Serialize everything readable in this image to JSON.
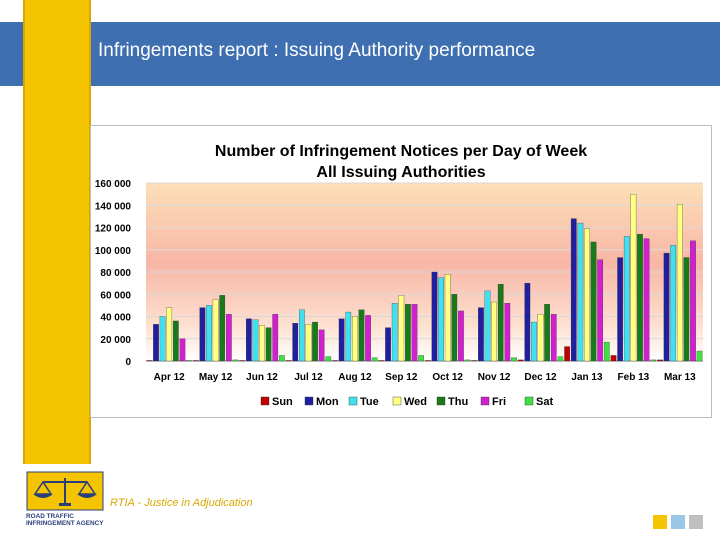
{
  "slide": {
    "title": "Infringements report :  Issuing Authority performance",
    "footer": "RTIA - Justice in Adjudication",
    "logo_text": [
      "ROAD TRAFFIC",
      "INFRINGEMENT AGENCY"
    ]
  },
  "colors": {
    "header": "#3e6fb0",
    "strip": "#f5c400",
    "footer_squares": [
      "#f5c400",
      "#9cc8e8",
      "#bfbfbf"
    ]
  },
  "chart_data": {
    "type": "bar",
    "title": [
      "Number of Infringement Notices per Day of  Week",
      "All Issuing Authorities"
    ],
    "categories": [
      "Apr 12",
      "May 12",
      "Jun 12",
      "Jul 12",
      "Aug 12",
      "Sep 12",
      "Oct 12",
      "Nov 12",
      "Dec 12",
      "Jan 13",
      "Feb 13",
      "Mar 13"
    ],
    "yticks": [
      "0",
      "20 000",
      "40 000",
      "60 000",
      "80 000",
      "100 000",
      "120 000",
      "140 000",
      "160 000"
    ],
    "ylim": [
      0,
      160000
    ],
    "grid": true,
    "legend_position": "bottom",
    "series": [
      {
        "name": "Sun",
        "color": "#c00000",
        "values": [
          500,
          500,
          500,
          500,
          500,
          500,
          500,
          500,
          1000,
          13000,
          5000,
          1000
        ]
      },
      {
        "name": "Mon",
        "color": "#1f1fa0",
        "values": [
          33000,
          48000,
          38000,
          34000,
          38000,
          30000,
          80000,
          48000,
          70000,
          128000,
          93000,
          97000
        ]
      },
      {
        "name": "Tue",
        "color": "#40e0f0",
        "values": [
          40000,
          50000,
          37000,
          46000,
          44000,
          52000,
          75000,
          63000,
          35000,
          124000,
          112000,
          104000
        ]
      },
      {
        "name": "Wed",
        "color": "#ffff80",
        "values": [
          48000,
          55000,
          32000,
          33000,
          40000,
          59000,
          78000,
          53000,
          42000,
          119000,
          150000,
          141000
        ]
      },
      {
        "name": "Thu",
        "color": "#1a7a1a",
        "values": [
          36000,
          59000,
          30000,
          35000,
          46000,
          51000,
          60000,
          69000,
          51000,
          107000,
          114000,
          93000
        ]
      },
      {
        "name": "Fri",
        "color": "#d020d0",
        "values": [
          20000,
          42000,
          42000,
          28000,
          41000,
          51000,
          45000,
          52000,
          42000,
          91000,
          110000,
          108000
        ]
      },
      {
        "name": "Sat",
        "color": "#40e040",
        "values": [
          500,
          1000,
          5000,
          4000,
          3000,
          5000,
          1000,
          3000,
          4000,
          17000,
          1000,
          9000
        ]
      }
    ]
  }
}
